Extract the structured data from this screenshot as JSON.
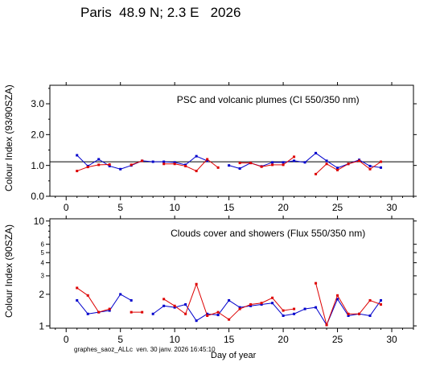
{
  "title": "Paris  48.9 N; 2.3 E   2026",
  "footer": "graphes_saoz_ALLc  ven. 30 janv. 2026 16:45:10",
  "colors": {
    "series1": "#0000cc",
    "series2": "#dd0000",
    "reference_line": "#000000"
  },
  "chart_data": [
    {
      "type": "line",
      "title": "PSC and volcanic plumes (CI 550/350 nm)",
      "ylabel": "Colour Index (93/90SZA)",
      "xlabel": "",
      "xlim": [
        -1.5,
        32
      ],
      "ylim": [
        0,
        3.6
      ],
      "xticks": [
        "0",
        "5",
        "10",
        "15",
        "20",
        "25",
        "30"
      ],
      "yticks": [
        "0.0",
        "1.0",
        "2.0",
        "3.0"
      ],
      "reference_line": 1.12,
      "grid": false,
      "series": [
        {
          "color": "blue",
          "points": [
            [
              1,
              1.33
            ],
            [
              2,
              0.98
            ],
            [
              3,
              1.2
            ],
            [
              4,
              0.98
            ],
            [
              5,
              0.88
            ],
            [
              6,
              1.0
            ],
            [
              7,
              1.15
            ],
            [
              8,
              1.12
            ],
            [
              9,
              1.12
            ],
            [
              10,
              1.1
            ],
            [
              11,
              1.02
            ],
            [
              12,
              1.3
            ],
            [
              13,
              1.15
            ],
            [
              15,
              1.0
            ],
            [
              16,
              0.9
            ],
            [
              17,
              1.08
            ],
            [
              18,
              0.97
            ],
            [
              19,
              1.1
            ],
            [
              20,
              1.1
            ],
            [
              21,
              1.15
            ],
            [
              22,
              1.1
            ],
            [
              23,
              1.4
            ],
            [
              24,
              1.15
            ],
            [
              25,
              0.92
            ],
            [
              26,
              1.05
            ],
            [
              27,
              1.18
            ],
            [
              28,
              0.98
            ],
            [
              29,
              0.93
            ]
          ]
        },
        {
          "color": "red",
          "points": [
            [
              1,
              0.82
            ],
            [
              2,
              0.95
            ],
            [
              3,
              1.02
            ],
            [
              4,
              1.03
            ],
            [
              6,
              1.02
            ],
            [
              7,
              1.15
            ],
            [
              9,
              1.05
            ],
            [
              10,
              1.05
            ],
            [
              11,
              0.98
            ],
            [
              12,
              0.82
            ],
            [
              13,
              1.2
            ],
            [
              14,
              0.93
            ],
            [
              16,
              1.08
            ],
            [
              17,
              1.08
            ],
            [
              18,
              0.96
            ],
            [
              19,
              1.02
            ],
            [
              20,
              1.02
            ],
            [
              21,
              1.28
            ],
            [
              23,
              0.72
            ],
            [
              24,
              1.05
            ],
            [
              25,
              0.85
            ],
            [
              26,
              1.05
            ],
            [
              27,
              1.15
            ],
            [
              28,
              0.88
            ],
            [
              29,
              1.12
            ]
          ]
        }
      ]
    },
    {
      "type": "line",
      "title": "Clouds cover and showers (Flux 550/350 nm)",
      "ylabel": "Colour Index (90SZA)",
      "xlabel": "Day of year",
      "xlim": [
        -1.5,
        32
      ],
      "ylim": [
        0.95,
        10.5
      ],
      "yscale": "log",
      "xticks": [
        "0",
        "5",
        "10",
        "15",
        "20",
        "25",
        "30"
      ],
      "yticks": [
        "1",
        "2",
        "3",
        "4",
        "5",
        "6",
        "10"
      ],
      "grid": false,
      "series": [
        {
          "color": "blue",
          "points": [
            [
              1,
              1.75
            ],
            [
              2,
              1.3
            ],
            [
              3,
              1.35
            ],
            [
              4,
              1.4
            ],
            [
              5,
              2.0
            ],
            [
              6,
              1.75
            ],
            [
              8,
              1.3
            ],
            [
              9,
              1.55
            ],
            [
              10,
              1.5
            ],
            [
              11,
              1.6
            ],
            [
              12,
              1.12
            ],
            [
              13,
              1.3
            ],
            [
              14,
              1.27
            ],
            [
              15,
              1.75
            ],
            [
              16,
              1.5
            ],
            [
              17,
              1.55
            ],
            [
              18,
              1.6
            ],
            [
              19,
              1.65
            ],
            [
              20,
              1.25
            ],
            [
              21,
              1.3
            ],
            [
              22,
              1.45
            ],
            [
              23,
              1.5
            ],
            [
              24,
              1.02
            ],
            [
              25,
              1.8
            ],
            [
              26,
              1.25
            ],
            [
              27,
              1.3
            ],
            [
              28,
              1.25
            ],
            [
              29,
              1.75
            ]
          ]
        },
        {
          "color": "red",
          "points": [
            [
              1,
              2.3
            ],
            [
              2,
              1.95
            ],
            [
              3,
              1.35
            ],
            [
              4,
              1.45
            ],
            [
              6,
              1.35
            ],
            [
              7,
              1.35
            ],
            [
              9,
              1.8
            ],
            [
              10,
              1.55
            ],
            [
              11,
              1.3
            ],
            [
              12,
              2.5
            ],
            [
              13,
              1.25
            ],
            [
              14,
              1.35
            ],
            [
              15,
              1.15
            ],
            [
              16,
              1.45
            ],
            [
              17,
              1.6
            ],
            [
              18,
              1.65
            ],
            [
              19,
              1.85
            ],
            [
              20,
              1.4
            ],
            [
              21,
              1.45
            ],
            [
              23,
              2.55
            ],
            [
              24,
              1.02
            ],
            [
              25,
              1.95
            ],
            [
              26,
              1.3
            ],
            [
              27,
              1.3
            ],
            [
              28,
              1.75
            ],
            [
              29,
              1.6
            ]
          ]
        }
      ]
    }
  ]
}
